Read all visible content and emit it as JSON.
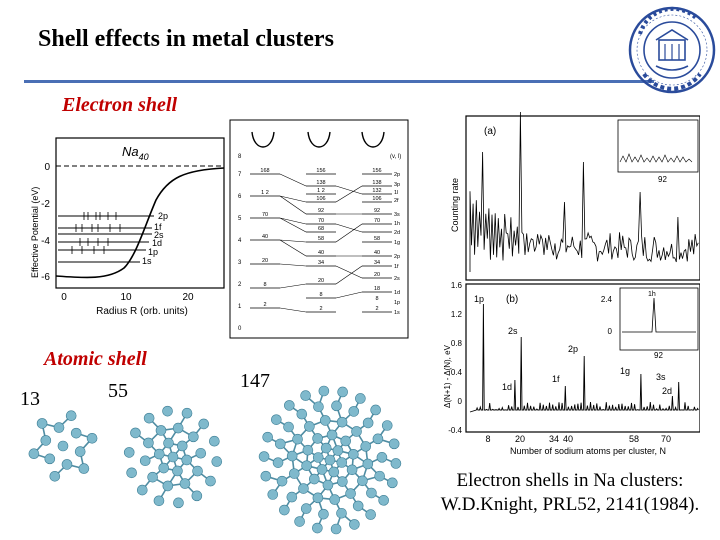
{
  "title": "Shell effects in metal clusters",
  "labels": {
    "electron_shell": "Electron shell",
    "atomic_shell": "Atomic shell"
  },
  "potential_plot": {
    "species": "Na",
    "species_sub": "40",
    "ylabel": "Effective Potential (eV)",
    "xlabel": "Radius  R (orb. units)",
    "yticks": [
      "0",
      "-2",
      "-4",
      "-6"
    ],
    "xticks": [
      "0",
      "10",
      "20"
    ],
    "levels": [
      "2p",
      "1f",
      "2s",
      "1d",
      "1p",
      "1s"
    ]
  },
  "level_diagram": {
    "header": "(v, l)",
    "left_axis": [
      "8",
      "7",
      "6",
      "5",
      "4",
      "3",
      "2",
      "1",
      "0"
    ],
    "col1": [
      "168",
      "1 2",
      "70",
      "40",
      "20",
      "8",
      "2"
    ],
    "col2": [
      "156",
      "138",
      "1 2",
      "106",
      "92",
      "70",
      "68",
      "58",
      "40",
      "34",
      "20",
      "8",
      "2"
    ],
    "col3": [
      "156",
      "138",
      "132",
      "106",
      "92",
      "70",
      "58",
      "40",
      "34",
      "20",
      "18",
      "8",
      "2"
    ],
    "right": [
      "2p",
      "3p",
      "1l",
      "2f",
      "3s",
      "1h",
      "2d",
      "1g",
      "2p",
      "1f",
      "2s",
      "1d",
      "1p",
      "1s"
    ]
  },
  "spectrum": {
    "panel_a": "(a)",
    "panel_b": "(b)",
    "ylabel_a": "Counting rate",
    "ylabel_b": "Δ(N+1) - Δ(N), eV",
    "xlabel": "Number of sodium atoms per cluster, N",
    "xticks": [
      "8",
      "20",
      "34",
      "40",
      "58",
      "70"
    ],
    "yticks_b": [
      "1.6",
      "1.2",
      "0.8",
      "0.4",
      "0",
      "-0.4"
    ],
    "inset_a_tick": "92",
    "inset_b_ytick_top": "2.4",
    "inset_b_ytick_bottom": "0",
    "inset_b_xtick": "92",
    "inset_b_peak": "1h",
    "peak_labels": [
      "1p",
      "1d",
      "2s",
      "1f",
      "2p",
      "1g",
      "2d",
      "3s"
    ]
  },
  "clusters": {
    "n1": "13",
    "n2": "55",
    "n3": "147"
  },
  "caption": {
    "line1": "Electron shells in Na clusters:",
    "line2": "W.D.Knight, PRL52, 2141(1984)."
  },
  "colors": {
    "accent_rule": "#4a6fb5",
    "section_label": "#c00000",
    "seal": "#2a4b9b",
    "atom": "#7fb9cc",
    "bond": "#4f8da3"
  }
}
